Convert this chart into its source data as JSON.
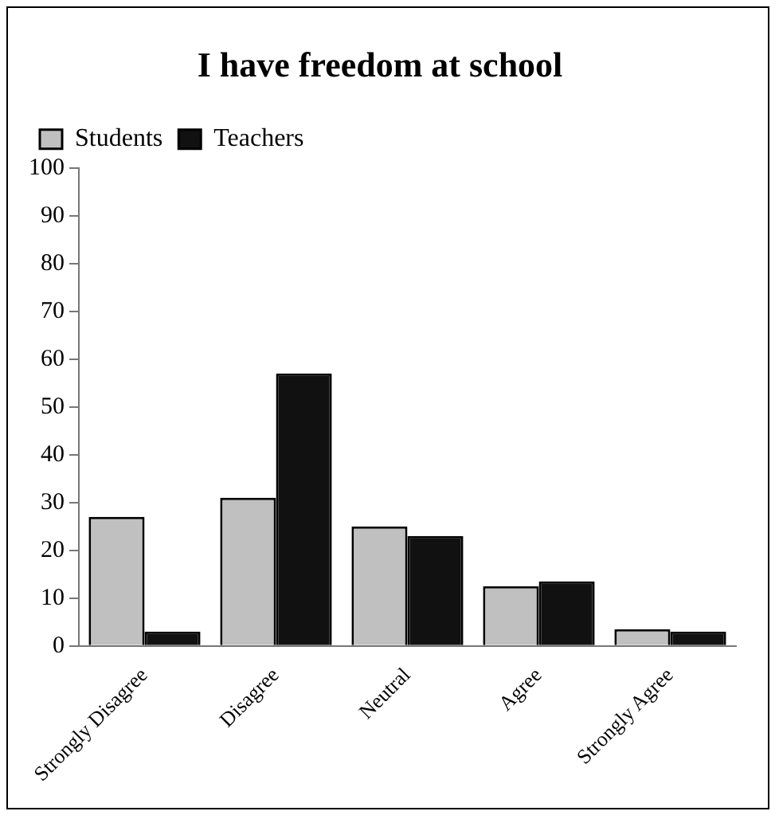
{
  "chart_data": {
    "type": "bar",
    "title": "I have freedom at school",
    "categories": [
      "Strongly Disagree",
      "Disagree",
      "Neutral",
      "Agree",
      "Strongly Agree"
    ],
    "series": [
      {
        "name": "Students",
        "color": "#c0c0c0",
        "values": [
          27,
          31,
          25,
          12.5,
          3.5
        ]
      },
      {
        "name": "Teachers",
        "color": "#111111",
        "values": [
          3,
          57,
          23,
          13.5,
          3
        ]
      }
    ],
    "ylim": [
      0,
      100
    ],
    "yticks": [
      0,
      10,
      20,
      30,
      40,
      50,
      60,
      70,
      80,
      90,
      100
    ],
    "grid": false,
    "legend": "top left"
  }
}
